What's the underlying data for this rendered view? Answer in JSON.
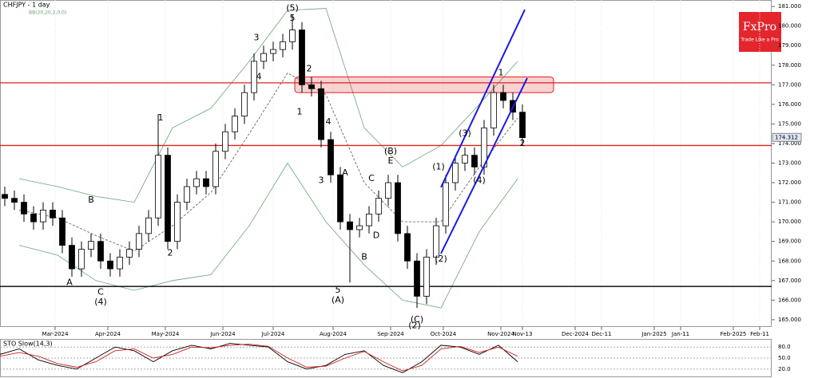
{
  "chart_data": [
    {
      "type": "candlestick",
      "title": "CHFJPY - 1 day",
      "indicator": "BB(20,20,2,0,0)",
      "brand": "FxPro",
      "slogan": "Trade Like a Pro",
      "x": [
        2,
        6,
        10,
        14,
        18,
        22,
        26,
        30,
        34,
        38,
        42,
        46,
        50,
        54,
        58,
        62,
        66,
        70,
        74,
        78,
        82,
        86,
        90,
        94,
        98,
        102,
        106,
        110,
        114,
        118,
        122,
        126,
        130,
        134,
        138,
        142,
        146,
        150,
        154,
        158,
        162,
        166,
        170,
        174,
        178,
        182,
        186,
        190,
        194,
        198,
        202,
        206,
        210,
        214,
        218
      ],
      "open": [
        171.4,
        171.2,
        171.0,
        170.4,
        170.0,
        170.6,
        170.2,
        168.8,
        167.6,
        168.6,
        169.0,
        168.0,
        167.6,
        168.2,
        168.6,
        169.4,
        170.2,
        173.4,
        169.0,
        171.0,
        171.8,
        172.2,
        171.8,
        173.6,
        174.6,
        175.4,
        176.6,
        178.2,
        178.6,
        178.8,
        179.2,
        179.8,
        177.0,
        176.8,
        174.2,
        172.4,
        170.0,
        169.6,
        169.8,
        170.4,
        171.2,
        172.0,
        169.4,
        168.0,
        166.2,
        168.2,
        169.8,
        172.0,
        173.0,
        173.4,
        172.8,
        174.8,
        176.6,
        176.2,
        175.6
      ],
      "high": [
        171.8,
        171.6,
        171.4,
        170.8,
        171.0,
        171.0,
        170.6,
        169.2,
        169.0,
        169.4,
        169.4,
        168.4,
        168.6,
        169.0,
        169.8,
        170.6,
        175.5,
        173.8,
        171.4,
        172.2,
        172.6,
        172.6,
        174.0,
        175.0,
        175.8,
        177.0,
        178.6,
        179.0,
        179.2,
        179.6,
        180.6,
        180.2,
        177.4,
        177.2,
        174.6,
        172.8,
        170.4,
        170.2,
        170.8,
        171.6,
        172.4,
        172.4,
        169.8,
        168.4,
        168.6,
        170.2,
        172.4,
        173.4,
        173.8,
        173.8,
        175.2,
        177.0,
        177.0,
        176.6,
        176.0
      ],
      "low": [
        170.8,
        170.6,
        170.0,
        169.6,
        169.6,
        169.8,
        168.4,
        167.2,
        167.2,
        168.2,
        167.6,
        167.2,
        167.2,
        167.8,
        168.2,
        169.0,
        169.8,
        168.6,
        168.6,
        170.6,
        171.4,
        171.4,
        171.4,
        173.2,
        174.2,
        175.0,
        176.2,
        177.8,
        178.2,
        178.4,
        178.8,
        176.6,
        176.4,
        173.8,
        172.0,
        169.6,
        166.9,
        169.2,
        169.4,
        170.0,
        170.8,
        169.0,
        167.6,
        165.6,
        165.8,
        167.8,
        169.4,
        171.6,
        172.6,
        172.4,
        172.4,
        174.4,
        175.8,
        175.2,
        173.9
      ],
      "close": [
        171.2,
        171.0,
        170.4,
        170.0,
        170.6,
        170.2,
        168.8,
        167.6,
        168.6,
        169.0,
        168.0,
        167.6,
        168.2,
        168.6,
        169.4,
        170.2,
        173.4,
        169.0,
        171.0,
        171.8,
        172.2,
        171.8,
        173.6,
        174.6,
        175.4,
        176.6,
        178.2,
        178.6,
        178.8,
        179.2,
        179.8,
        177.0,
        176.8,
        174.2,
        172.4,
        170.0,
        169.6,
        169.8,
        170.4,
        171.2,
        172.0,
        169.4,
        168.0,
        166.2,
        168.2,
        169.8,
        172.0,
        173.0,
        173.4,
        172.8,
        174.8,
        176.6,
        176.2,
        175.6,
        174.3
      ],
      "bands": [
        {
          "color": "#6aa37a",
          "x": [
            8,
            24,
            40,
            56,
            72,
            88,
            104,
            120,
            136,
            152,
            168,
            184,
            200,
            216
          ],
          "values": [
            172.2,
            171.8,
            171.3,
            171.0,
            174.8,
            175.8,
            178.2,
            180.8,
            180.9,
            174.8,
            172.8,
            173.9,
            176.0,
            178.2
          ]
        },
        {
          "color": "#555555",
          "x": [
            8,
            24,
            40,
            56,
            72,
            88,
            104,
            120,
            136,
            152,
            168,
            184,
            200,
            216
          ],
          "values": [
            170.6,
            170.2,
            169.3,
            168.5,
            169.8,
            171.5,
            174.5,
            177.6,
            176.5,
            172.0,
            170.0,
            170.0,
            172.8,
            175.3
          ]
        },
        {
          "color": "#6aa37a",
          "x": [
            8,
            24,
            40,
            56,
            72,
            88,
            104,
            120,
            136,
            152,
            168,
            184,
            200,
            216
          ],
          "values": [
            168.8,
            168.3,
            167.0,
            166.5,
            167.0,
            167.3,
            169.8,
            173.0,
            170.0,
            167.8,
            166.0,
            165.6,
            169.5,
            172.2
          ]
        }
      ],
      "hlines": [
        {
          "value": 177.1,
          "color": "#e0201c"
        },
        {
          "value": 173.9,
          "color": "#e0201c"
        },
        {
          "value": 166.7,
          "color": "#000000"
        }
      ],
      "zone": {
        "x": [
          123,
          231
        ],
        "y": [
          176.6,
          177.4
        ],
        "color": "#e0201c"
      },
      "channel": [
        {
          "x": [
            184,
            219
          ],
          "y": [
            171.76,
            180.84
          ]
        },
        {
          "x": [
            184,
            220
          ],
          "y": [
            168.38,
            177.34
          ]
        }
      ],
      "channel_color": "#1a1ae6",
      "last_price": {
        "value": 174.312,
        "label": "174.312"
      },
      "waves": [
        {
          "text": "(5)",
          "x": 122,
          "y": 180.9
        },
        {
          "text": "5",
          "x": 122,
          "y": 180.4
        },
        {
          "text": "3",
          "x": 107,
          "y": 179.4
        },
        {
          "text": "4",
          "x": 108,
          "y": 177.4
        },
        {
          "text": "2",
          "x": 129,
          "y": 177.8
        },
        {
          "text": "1",
          "x": 125,
          "y": 175.6
        },
        {
          "text": "4",
          "x": 137,
          "y": 175.1
        },
        {
          "text": "3",
          "x": 134,
          "y": 172.1
        },
        {
          "text": "A",
          "x": 144,
          "y": 172.5
        },
        {
          "text": "C",
          "x": 155,
          "y": 172.2
        },
        {
          "text": "D",
          "x": 157,
          "y": 169.3
        },
        {
          "text": "B",
          "x": 152,
          "y": 168.2
        },
        {
          "text": "5",
          "x": 141,
          "y": 166.5
        },
        {
          "text": "(A)",
          "x": 141,
          "y": 166.0
        },
        {
          "text": "(B)",
          "x": 163,
          "y": 173.6
        },
        {
          "text": "E",
          "x": 163,
          "y": 173.1
        },
        {
          "text": "(1)",
          "x": 183,
          "y": 172.8
        },
        {
          "text": "(3)",
          "x": 194,
          "y": 174.5
        },
        {
          "text": "(4)",
          "x": 200,
          "y": 172.1
        },
        {
          "text": "(2)",
          "x": 184,
          "y": 168.1
        },
        {
          "text": "1",
          "x": 209,
          "y": 177.6
        },
        {
          "text": "2",
          "x": 218,
          "y": 174.0
        },
        {
          "text": "(C)",
          "x": 174,
          "y": 165.0
        },
        {
          "text": "(2)",
          "x": 173,
          "y": 164.7
        },
        {
          "text": "1",
          "x": 67,
          "y": 175.3
        },
        {
          "text": "2",
          "x": 71,
          "y": 168.4
        },
        {
          "text": "B",
          "x": 38,
          "y": 171.1
        },
        {
          "text": "A",
          "x": 29,
          "y": 166.9
        },
        {
          "text": "C",
          "x": 42,
          "y": 166.4
        },
        {
          "text": "(4)",
          "x": 42,
          "y": 165.9
        }
      ],
      "xlim": [
        0,
        322
      ],
      "ylim": [
        164.63,
        181.33
      ],
      "xticks": [
        {
          "value": 23,
          "label": "Mar-2024"
        },
        {
          "value": 45,
          "label": "Apr-2024"
        },
        {
          "value": 69,
          "label": "May-2024"
        },
        {
          "value": 93,
          "label": "Jun-2024"
        },
        {
          "value": 114,
          "label": "Jul-2024"
        },
        {
          "value": 139,
          "label": "Aug-2024"
        },
        {
          "value": 163,
          "label": "Sep-2024"
        },
        {
          "value": 185,
          "label": "Oct-2024"
        },
        {
          "value": 209,
          "label": "Nov-2024"
        },
        {
          "value": 218,
          "label": "Nov-13"
        },
        {
          "value": 240,
          "label": "Dec-2024"
        },
        {
          "value": 251,
          "label": "Dec-11"
        },
        {
          "value": 273,
          "label": "Jan-2025"
        },
        {
          "value": 284,
          "label": "Jan-11"
        },
        {
          "value": 306,
          "label": "Feb-2025"
        },
        {
          "value": 317,
          "label": "Feb-11"
        }
      ],
      "yticks": [
        {
          "value": 165,
          "label": "165.000"
        },
        {
          "value": 166,
          "label": "166.000"
        },
        {
          "value": 167,
          "label": "167.000"
        },
        {
          "value": 168,
          "label": "168.000"
        },
        {
          "value": 169,
          "label": "169.000"
        },
        {
          "value": 170,
          "label": "170.000"
        },
        {
          "value": 171,
          "label": "171.000"
        },
        {
          "value": 172,
          "label": "172.000"
        },
        {
          "value": 173,
          "label": "173.000"
        },
        {
          "value": 174,
          "label": "174.000"
        },
        {
          "value": 175,
          "label": "175.000"
        },
        {
          "value": 176,
          "label": "176.000"
        },
        {
          "value": 177,
          "label": "177.000"
        },
        {
          "value": 178,
          "label": "178.000"
        },
        {
          "value": 179,
          "label": "179.000"
        },
        {
          "value": 180,
          "label": "180.000"
        },
        {
          "value": 181,
          "label": "181.000"
        }
      ]
    },
    {
      "type": "line",
      "title": "STO Slow(14,3)",
      "series": [
        {
          "color": "#000000",
          "x": [
            0,
            8,
            16,
            24,
            32,
            40,
            48,
            56,
            64,
            72,
            80,
            88,
            96,
            104,
            112,
            120,
            128,
            136,
            144,
            152,
            160,
            168,
            176,
            184,
            192,
            200,
            208,
            216
          ],
          "values": [
            60,
            75,
            45,
            30,
            20,
            50,
            80,
            70,
            40,
            70,
            85,
            75,
            90,
            85,
            80,
            40,
            20,
            30,
            60,
            70,
            30,
            10,
            40,
            85,
            80,
            60,
            85,
            40
          ]
        },
        {
          "color": "#d02020",
          "x": [
            0,
            8,
            16,
            24,
            32,
            40,
            48,
            56,
            64,
            72,
            80,
            88,
            96,
            104,
            112,
            120,
            128,
            136,
            144,
            152,
            160,
            168,
            176,
            184,
            192,
            200,
            208,
            216
          ],
          "values": [
            55,
            65,
            55,
            35,
            25,
            40,
            70,
            75,
            50,
            60,
            80,
            78,
            85,
            88,
            82,
            50,
            25,
            28,
            50,
            68,
            40,
            15,
            30,
            75,
            82,
            65,
            80,
            55
          ]
        }
      ],
      "xlim": [
        0,
        322
      ],
      "ylim": [
        0,
        100
      ],
      "yticks": [
        {
          "value": 80,
          "label": "80.0"
        },
        {
          "value": 50,
          "label": "50.0"
        },
        {
          "value": 20,
          "label": "20.0"
        }
      ]
    }
  ]
}
